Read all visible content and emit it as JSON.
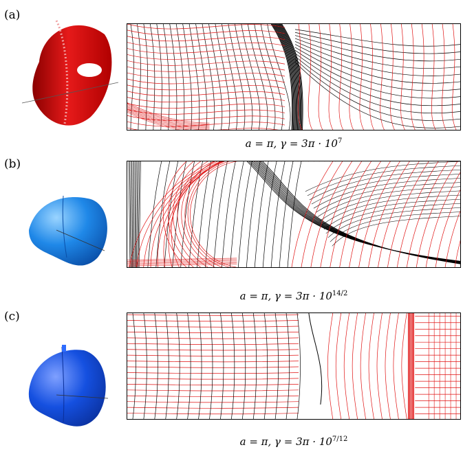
{
  "panels": [
    {
      "letter": "(a)",
      "color": "#d81414",
      "caption": {
        "pre": "a = π, γ = 3π · 10",
        "exp": "7"
      }
    },
    {
      "letter": "(b)",
      "color": "#1f88e8",
      "caption": {
        "pre": "a = π, γ = 3π · 10",
        "exp": "14/2"
      }
    },
    {
      "letter": "(c)",
      "color": "#1550e0",
      "caption": {
        "pre": "a = π, γ = 3π · 10",
        "exp": "7/12"
      }
    }
  ],
  "colors": {
    "line_black": "#000000",
    "line_red": "#e01010"
  }
}
